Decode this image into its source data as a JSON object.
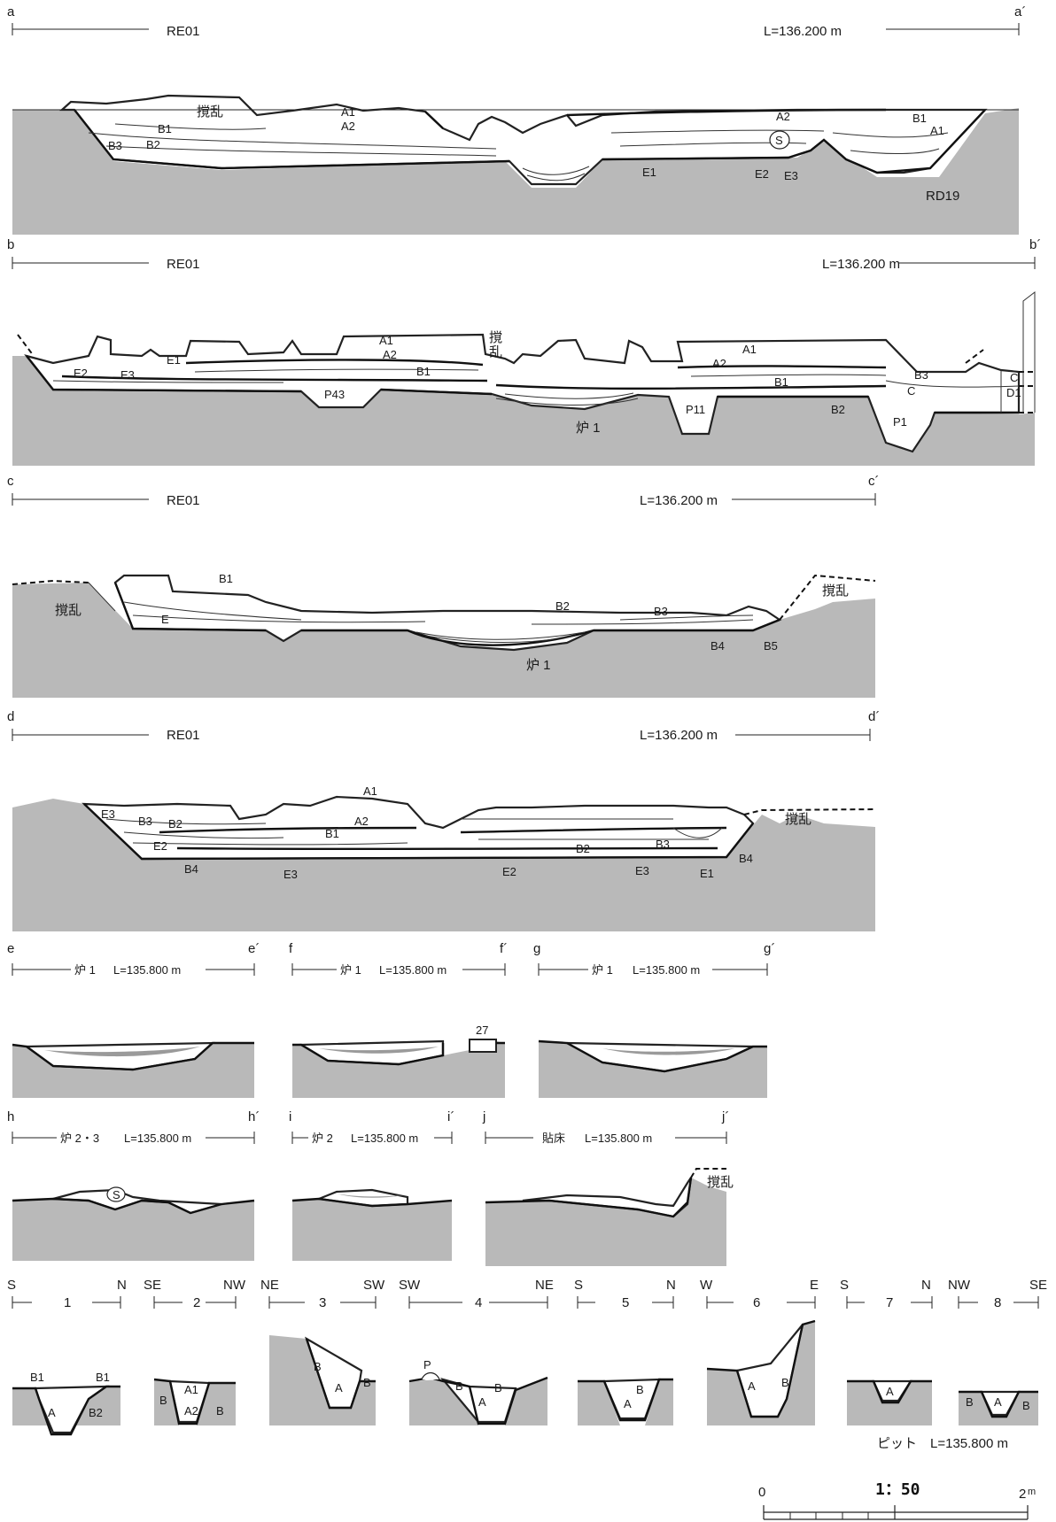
{
  "sections": [
    {
      "start": "a",
      "end": "a´",
      "label": "RE01",
      "level": "L=136.200 m"
    },
    {
      "start": "b",
      "end": "b´",
      "label": "RE01",
      "level": "L=136.200 m"
    },
    {
      "start": "c",
      "end": "c´",
      "label": "RE01",
      "level": "L=136.200 m"
    },
    {
      "start": "d",
      "end": "d´",
      "label": "RE01",
      "level": "L=136.200 m"
    }
  ],
  "small_sections": [
    {
      "start": "e",
      "end": "e´",
      "label": "炉 1",
      "level": "L=135.800 m"
    },
    {
      "start": "f",
      "end": "f´",
      "label": "炉 1",
      "level": "L=135.800 m"
    },
    {
      "start": "g",
      "end": "g´",
      "label": "炉 1",
      "level": "L=135.800 m"
    },
    {
      "start": "h",
      "end": "h´",
      "label": "炉 2・3",
      "level": "L=135.800 m"
    },
    {
      "start": "i",
      "end": "i´",
      "label": "炉 2",
      "level": "L=135.800 m"
    },
    {
      "start": "j",
      "end": "j´",
      "label": "貼床",
      "level": "L=135.800 m"
    }
  ],
  "pits": [
    {
      "num": "1",
      "left": "S",
      "right": "N"
    },
    {
      "num": "2",
      "left": "SE",
      "right": "NW"
    },
    {
      "num": "3",
      "left": "NE",
      "right": "SW"
    },
    {
      "num": "4",
      "left": "SW",
      "right": "NE"
    },
    {
      "num": "5",
      "left": "S",
      "right": "N"
    },
    {
      "num": "6",
      "left": "W",
      "right": "E"
    },
    {
      "num": "7",
      "left": "S",
      "right": "N"
    },
    {
      "num": "8",
      "left": "NW",
      "right": "SE"
    }
  ],
  "pit_caption": "ピット　L=135.800 m",
  "scale": {
    "zero": "0",
    "ratio": "1：50",
    "max": "2",
    "unit": "m"
  },
  "labels": {
    "a": {
      "disturb": "撹乱",
      "A1": "A1",
      "A2": "A2",
      "B1": "B1",
      "B2": "B2",
      "B3": "B3",
      "A2r": "A2",
      "B1r": "B1",
      "A1r": "A1",
      "S": "S",
      "E1": "E1",
      "E2": "E2",
      "E3": "E3",
      "RD19": "RD19"
    },
    "b": {
      "A1": "A1",
      "A2": "A2",
      "E1": "E1",
      "B1": "B1",
      "E2": "E2",
      "E3": "E3",
      "P43": "P43",
      "disturb": "撹\n乱",
      "hearth": "炉 1",
      "A1r": "A1",
      "A2r": "A2",
      "B3": "B3",
      "B1r": "B1",
      "C": "C",
      "B2": "B2",
      "P11": "P11",
      "P1": "P1",
      "C2": "C",
      "D1": "D1"
    },
    "c": {
      "disturb": "撹乱",
      "B1": "B1",
      "E": "E",
      "B2": "B2",
      "B3": "B3",
      "hearth": "炉 1",
      "B4": "B4",
      "B5": "B5",
      "disturb2": "撹乱"
    },
    "d": {
      "A1": "A1",
      "E3": "E3",
      "B3": "B3",
      "B2": "B2",
      "A2": "A2",
      "E2": "E2",
      "B1": "B1",
      "B4": "B4",
      "E3b": "E3",
      "B2b": "B2",
      "E2b": "E2",
      "B3b": "B3",
      "E3c": "E3",
      "E1": "E1",
      "B4b": "B4",
      "disturb": "撹乱"
    },
    "f": {
      "num": "27"
    },
    "h": {
      "S": "S"
    },
    "j": {
      "disturb": "撹乱"
    },
    "p1": {
      "B1l": "B1",
      "B1r": "B1",
      "A": "A",
      "B2": "B2"
    },
    "p2": {
      "A1": "A1",
      "B": "B",
      "A2": "A2",
      "Br": "B"
    },
    "p3": {
      "B": "B",
      "A": "A",
      "Br": "B"
    },
    "p4": {
      "P": "P",
      "B": "B",
      "A": "A",
      "Br": "B"
    },
    "p5": {
      "B": "B",
      "A": "A"
    },
    "p6": {
      "A": "A",
      "B": "B"
    },
    "p7": {
      "A": "A"
    },
    "p8": {
      "B": "B",
      "A": "A",
      "Br": "B"
    }
  }
}
